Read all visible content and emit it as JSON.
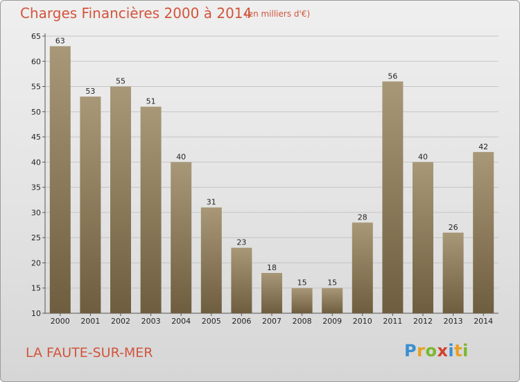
{
  "header": {
    "title": "Charges Financières 2000 à 2014",
    "subtitle": "(en milliers d'€)"
  },
  "footer": {
    "commune": "LA FAUTE-SUR-MER",
    "logo_letters": [
      "P",
      "r",
      "o",
      "x",
      "i",
      "t",
      "i"
    ]
  },
  "colors": {
    "title": "#d2543c",
    "bar_top": "#a89878",
    "bar_bottom": "#6e5e3f",
    "logo": [
      "#3a8fd0",
      "#e8a020",
      "#7ab830",
      "#d24030",
      "#3a8fd0",
      "#e8a020",
      "#7ab830"
    ]
  },
  "chart_data": {
    "type": "bar",
    "categories": [
      "2000",
      "2001",
      "2002",
      "2003",
      "2004",
      "2005",
      "2006",
      "2007",
      "2008",
      "2009",
      "2010",
      "2011",
      "2012",
      "2013",
      "2014"
    ],
    "values": [
      63,
      53,
      55,
      51,
      40,
      31,
      23,
      18,
      15,
      15,
      28,
      56,
      40,
      26,
      42
    ],
    "ylim": [
      10,
      65
    ],
    "yticks": [
      10,
      15,
      20,
      25,
      30,
      35,
      40,
      45,
      50,
      55,
      60,
      65
    ],
    "grid": true,
    "xlabel": "",
    "ylabel": ""
  }
}
